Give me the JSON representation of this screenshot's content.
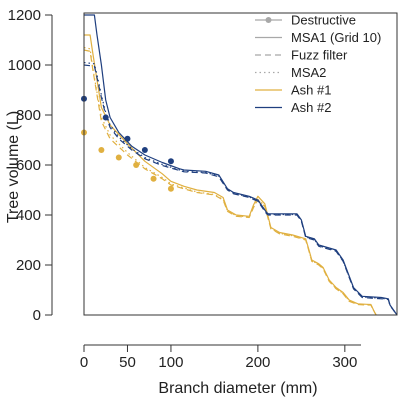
{
  "chart_data": {
    "type": "line",
    "title": "",
    "xlabel": "Branch diameter (mm)",
    "ylabel": "Tree volume (L)",
    "xlim": [
      0,
      360
    ],
    "ylim": [
      0,
      1200
    ],
    "xticks": [
      0,
      50,
      100,
      200,
      300
    ],
    "yticks": [
      0,
      200,
      400,
      600,
      800,
      1000,
      1200
    ],
    "legend_position": "top-right",
    "colors": {
      "ash1": "#e0b040",
      "ash2": "#1f3f7f",
      "gray": "#a8a8a8"
    },
    "legend": [
      {
        "label": "Destructive",
        "style": "marker-line",
        "color": "#a8a8a8"
      },
      {
        "label": "MSA1 (Grid 10)",
        "style": "solid",
        "color": "#a8a8a8"
      },
      {
        "label": "Fuzz filter",
        "style": "dashed",
        "color": "#a8a8a8"
      },
      {
        "label": "MSA2",
        "style": "dotted",
        "color": "#a8a8a8"
      },
      {
        "label": "Ash #1",
        "style": "solid",
        "color": "#e0b040"
      },
      {
        "label": "Ash #2",
        "style": "solid",
        "color": "#1f3f7f"
      }
    ],
    "series": [
      {
        "tree": "Ash #1",
        "method": "Destructive",
        "color": "#e0b040",
        "style": "points",
        "x": [
          0,
          20,
          40,
          60,
          80,
          100
        ],
        "y": [
          730,
          660,
          630,
          600,
          545,
          505
        ]
      },
      {
        "tree": "Ash #1",
        "method": "MSA1 (Grid 10)",
        "color": "#e0b040",
        "style": "solid",
        "x": [
          0,
          7,
          10,
          15,
          20,
          30,
          50,
          70,
          90,
          100,
          115,
          130,
          150,
          160,
          165,
          175,
          190,
          195,
          200,
          208,
          215,
          225,
          240,
          255,
          258,
          262,
          270,
          275,
          282,
          290,
          298,
          305,
          315,
          325,
          330,
          333,
          336
        ],
        "y": [
          1120,
          1120,
          1050,
          940,
          830,
          760,
          685,
          615,
          565,
          535,
          515,
          500,
          490,
          470,
          420,
          400,
          395,
          440,
          475,
          445,
          350,
          330,
          320,
          305,
          270,
          220,
          205,
          190,
          140,
          110,
          90,
          60,
          45,
          43,
          42,
          20,
          0
        ]
      },
      {
        "tree": "Ash #1",
        "method": "Fuzz filter",
        "color": "#e0b040",
        "style": "dashed",
        "x": [
          0,
          7,
          10,
          15,
          20,
          30,
          50,
          70,
          90,
          100,
          115,
          130,
          150,
          160,
          165,
          175,
          190,
          195,
          200,
          208,
          215,
          225,
          240,
          255,
          258,
          262,
          270,
          275,
          282,
          290,
          298,
          305,
          315,
          325,
          330,
          333,
          336
        ],
        "y": [
          1060,
          1055,
          985,
          880,
          775,
          705,
          640,
          585,
          545,
          520,
          505,
          490,
          480,
          460,
          415,
          395,
          390,
          430,
          460,
          435,
          345,
          325,
          315,
          300,
          265,
          215,
          200,
          185,
          135,
          105,
          85,
          55,
          42,
          40,
          40,
          18,
          0
        ]
      },
      {
        "tree": "Ash #1",
        "method": "MSA2",
        "color": "#e0b040",
        "style": "dotted",
        "x": [
          0,
          7,
          10,
          15,
          20,
          30,
          50,
          70,
          90,
          100,
          115,
          130,
          150,
          160,
          165,
          175,
          190,
          195,
          200,
          208,
          215,
          225,
          240,
          255,
          258,
          262,
          270,
          275,
          282,
          290,
          298,
          305,
          315,
          325,
          330,
          333,
          336
        ],
        "y": [
          1070,
          1065,
          990,
          890,
          790,
          720,
          650,
          590,
          550,
          525,
          508,
          492,
          482,
          462,
          417,
          397,
          392,
          432,
          462,
          437,
          347,
          327,
          317,
          302,
          267,
          217,
          202,
          187,
          137,
          107,
          87,
          57,
          43,
          41,
          41,
          19,
          0
        ]
      },
      {
        "tree": "Ash #2",
        "method": "Destructive",
        "color": "#1f3f7f",
        "style": "points",
        "x": [
          0,
          25,
          50,
          70,
          100
        ],
        "y": [
          865,
          790,
          705,
          660,
          615
        ]
      },
      {
        "tree": "Ash #2",
        "method": "MSA1 (Grid 10)",
        "color": "#1f3f7f",
        "style": "solid",
        "x": [
          0,
          12,
          15,
          20,
          25,
          30,
          40,
          55,
          70,
          90,
          110,
          115,
          140,
          155,
          165,
          172,
          190,
          200,
          210,
          212,
          245,
          250,
          255,
          265,
          270,
          290,
          298,
          310,
          320,
          342,
          350,
          352,
          360
        ],
        "y": [
          1200,
          1200,
          1120,
          1000,
          860,
          790,
          730,
          675,
          640,
          610,
          585,
          580,
          575,
          560,
          505,
          490,
          475,
          460,
          410,
          405,
          405,
          380,
          315,
          305,
          280,
          260,
          220,
          110,
          75,
          70,
          65,
          40,
          0
        ]
      },
      {
        "tree": "Ash #2",
        "method": "Fuzz filter",
        "color": "#1f3f7f",
        "style": "dashed",
        "x": [
          0,
          12,
          15,
          20,
          25,
          30,
          40,
          55,
          70,
          90,
          110,
          115,
          140,
          155,
          165,
          172,
          190,
          200,
          210,
          212,
          245,
          250,
          255,
          265,
          270,
          290,
          298,
          310,
          320,
          342,
          350,
          352,
          360
        ],
        "y": [
          1000,
          995,
          950,
          870,
          800,
          750,
          705,
          660,
          625,
          598,
          578,
          573,
          568,
          553,
          500,
          485,
          470,
          455,
          405,
          400,
          400,
          375,
          310,
          300,
          275,
          255,
          215,
          105,
          70,
          65,
          62,
          38,
          0
        ]
      },
      {
        "tree": "Ash #2",
        "method": "MSA2",
        "color": "#1f3f7f",
        "style": "dotted",
        "x": [
          0,
          12,
          15,
          20,
          25,
          30,
          40,
          55,
          70,
          90,
          110,
          115,
          140,
          155,
          165,
          172,
          190,
          200,
          210,
          212,
          245,
          250,
          255,
          265,
          270,
          290,
          298,
          310,
          320,
          342,
          350,
          352,
          360
        ],
        "y": [
          1010,
          1005,
          960,
          880,
          810,
          760,
          712,
          665,
          630,
          602,
          580,
          575,
          570,
          556,
          502,
          487,
          472,
          457,
          407,
          402,
          402,
          377,
          312,
          302,
          277,
          257,
          217,
          107,
          72,
          67,
          63,
          39,
          0
        ]
      }
    ]
  }
}
